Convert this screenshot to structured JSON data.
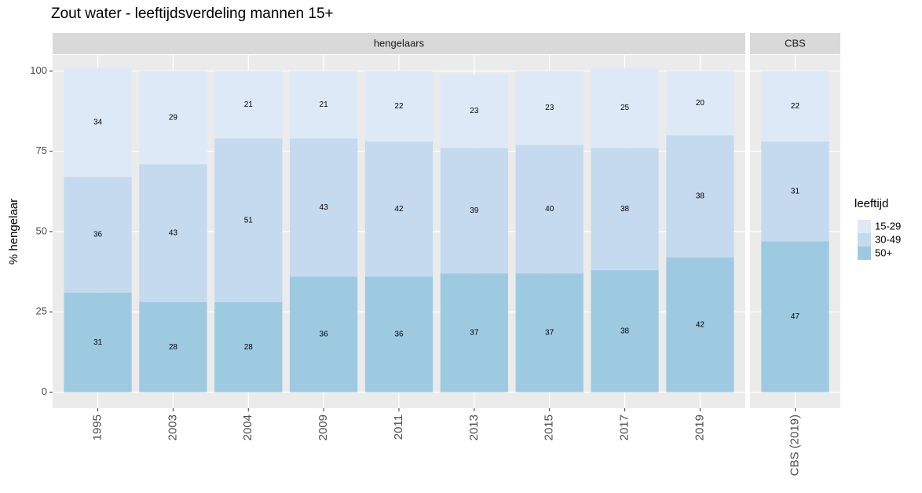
{
  "chart_data": {
    "type": "bar",
    "stacked": true,
    "title": "Zout water - leeftijdsverdeling mannen 15+",
    "y_label": "% hengelaar",
    "legend_title": "leeftijd",
    "categories": [
      "1995",
      "2003",
      "2004",
      "2009",
      "2011",
      "2013",
      "2015",
      "2017",
      "2019",
      "CBS (2019)"
    ],
    "facet": [
      "hengelaars",
      "hengelaars",
      "hengelaars",
      "hengelaars",
      "hengelaars",
      "hengelaars",
      "hengelaars",
      "hengelaars",
      "hengelaars",
      "CBS"
    ],
    "series": [
      {
        "name": "15-29",
        "color": "#dde9f6",
        "values": [
          34,
          29,
          21,
          21,
          22,
          23,
          23,
          25,
          20,
          22
        ]
      },
      {
        "name": "30-49",
        "color": "#c5d9ef",
        "values": [
          36,
          43,
          51,
          43,
          42,
          39,
          40,
          38,
          38,
          31
        ]
      },
      {
        "name": "50+",
        "color": "#9ecae1",
        "values": [
          31,
          28,
          28,
          36,
          36,
          37,
          37,
          38,
          42,
          47
        ]
      }
    ],
    "ylim": [
      -5,
      105
    ],
    "yticks": [
      0,
      25,
      50,
      75,
      100
    ],
    "grid": true,
    "legend": "right"
  }
}
